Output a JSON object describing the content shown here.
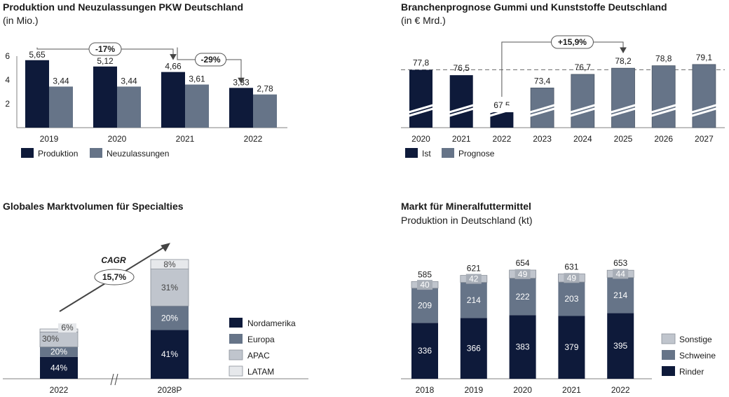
{
  "colors": {
    "navy": "#0e1a3a",
    "slate": "#667488",
    "light_gray": "#c0c5cd",
    "lighter_gray": "#e6e8eb",
    "axis": "#808080",
    "dash": "#707070"
  },
  "chart_data": [
    {
      "type": "bar",
      "title": "Produktion und Neuzulassungen PKW Deutschland",
      "subtitle": "(in Mio.)",
      "categories": [
        "2019",
        "2020",
        "2021",
        "2022"
      ],
      "series": [
        {
          "name": "Produktion",
          "values": [
            5.65,
            5.12,
            4.66,
            3.33
          ],
          "labels": [
            "5,65",
            "5,12",
            "4,66",
            "3,33"
          ]
        },
        {
          "name": "Neuzulassungen",
          "values": [
            3.44,
            3.44,
            3.61,
            2.78
          ],
          "labels": [
            "3,44",
            "3,44",
            "3,61",
            "2,78"
          ]
        }
      ],
      "yticks": [
        2,
        4,
        6
      ],
      "ylim": [
        0,
        7.4
      ],
      "annotations": [
        {
          "text": "-17%",
          "from": "2019",
          "to": "2021"
        },
        {
          "text": "-29%",
          "from": "2021",
          "to": "2022"
        }
      ],
      "legend": "bottom-left"
    },
    {
      "type": "bar",
      "title": "Branchenprognose Gummi und Kunststoffe Deutschland",
      "subtitle": "(in € Mrd.)",
      "categories": [
        "2020",
        "2021",
        "2022",
        "2023",
        "2024",
        "2025",
        "2026",
        "2027"
      ],
      "values": [
        77.8,
        76.5,
        67.5,
        73.4,
        76.7,
        78.2,
        78.8,
        79.1
      ],
      "labels": [
        "77,8",
        "76,5",
        "67,5",
        "73,4",
        "76,7",
        "78,2",
        "78,8",
        "79,1"
      ],
      "series_kind": [
        "Ist",
        "Ist",
        "Ist",
        "Prognose",
        "Prognose",
        "Prognose",
        "Prognose",
        "Prognose"
      ],
      "legend_entries": [
        "Ist",
        "Prognose"
      ],
      "axis_break": true,
      "reference_line": 77.8,
      "annotations": [
        {
          "text": "+15,9%",
          "from": "2022",
          "to": "2025"
        }
      ],
      "legend": "bottom-left"
    },
    {
      "type": "bar",
      "stacked": true,
      "title": "Globales Marktvolumen für Specialties",
      "categories": [
        "2022",
        "2028P"
      ],
      "series": [
        {
          "name": "Nordamerika",
          "values": [
            44,
            41
          ]
        },
        {
          "name": "Europa",
          "values": [
            20,
            20
          ]
        },
        {
          "name": "APAC",
          "values": [
            30,
            31
          ]
        },
        {
          "name": "LATAM",
          "values": [
            6,
            8
          ]
        }
      ],
      "labels": [
        [
          "44%",
          "20%",
          "30%",
          "6%"
        ],
        [
          "41%",
          "20%",
          "31%",
          "8%"
        ]
      ],
      "annotations": [
        {
          "text": "CAGR"
        },
        {
          "text": "15,7%"
        }
      ],
      "axis_break": true,
      "legend": "right"
    },
    {
      "type": "bar",
      "stacked": true,
      "title": "Markt für Mineralfuttermittel",
      "subtitle": "Produktion in Deutschland (kt)",
      "categories": [
        "2018",
        "2019",
        "2020",
        "2021",
        "2022"
      ],
      "series": [
        {
          "name": "Rinder",
          "values": [
            336,
            366,
            383,
            379,
            395
          ]
        },
        {
          "name": "Schweine",
          "values": [
            209,
            214,
            222,
            203,
            214
          ]
        },
        {
          "name": "Sonstige",
          "values": [
            40,
            42,
            49,
            49,
            44
          ]
        }
      ],
      "totals": [
        585,
        621,
        654,
        631,
        653
      ],
      "ylim": [
        0,
        660
      ],
      "legend": "right"
    }
  ]
}
